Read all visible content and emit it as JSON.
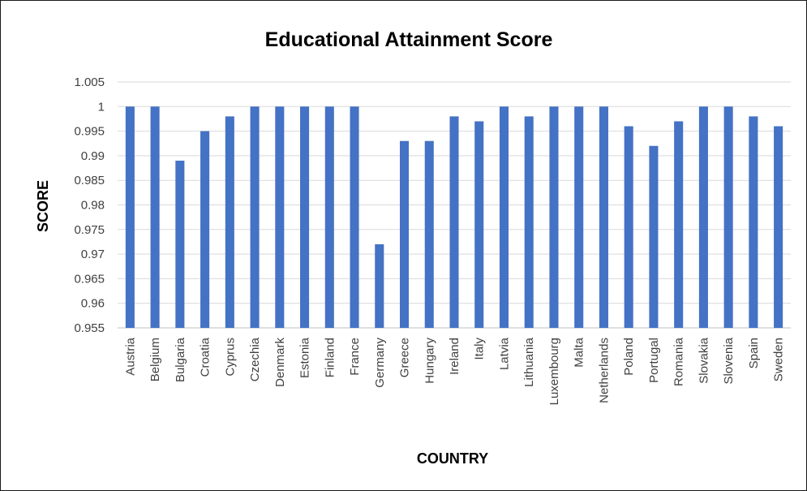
{
  "chart_data": {
    "type": "bar",
    "title": "Educational Attainment Score",
    "xlabel": "COUNTRY",
    "ylabel": "SCORE",
    "ylim": [
      0.955,
      1.005
    ],
    "yticks": [
      "1.005",
      "1",
      "0.995",
      "0.99",
      "0.985",
      "0.98",
      "0.975",
      "0.97",
      "0.965",
      "0.96",
      "0.955"
    ],
    "grid": true,
    "legend": "none",
    "bar_color": "#4472C4",
    "categories": [
      "Austria",
      "Belgium",
      "Bulgaria",
      "Croatia",
      "Cyprus",
      "Czechia",
      "Denmark",
      "Estonia",
      "Finland",
      "France",
      "Germany",
      "Greece",
      "Hungary",
      "Ireland",
      "Italy",
      "Latvia",
      "Lithuania",
      "Luxembourg",
      "Malta",
      "Netherlands",
      "Poland",
      "Portugal",
      "Romania",
      "Slovakia",
      "Slovenia",
      "Spain",
      "Sweden"
    ],
    "values": [
      1,
      1,
      0.989,
      0.995,
      0.998,
      1,
      1,
      1,
      1,
      1,
      0.972,
      0.993,
      0.993,
      0.998,
      0.997,
      1,
      0.998,
      1,
      1,
      1,
      0.996,
      0.992,
      0.997,
      1,
      1,
      0.998,
      0.996
    ]
  }
}
